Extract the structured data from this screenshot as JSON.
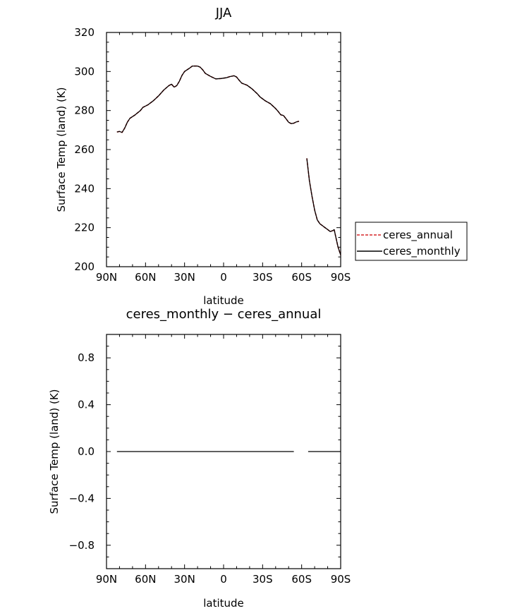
{
  "chart_data": [
    {
      "type": "line",
      "title": "JJA",
      "xlabel": "latitude",
      "ylabel": "Surface Temp (land) (K)",
      "xlim": [
        90,
        -90
      ],
      "ylim": [
        200,
        320
      ],
      "x_ticks": [
        {
          "value": 90,
          "label": "90N"
        },
        {
          "value": 60,
          "label": "60N"
        },
        {
          "value": 30,
          "label": "30N"
        },
        {
          "value": 0,
          "label": "0"
        },
        {
          "value": -30,
          "label": "30S"
        },
        {
          "value": -60,
          "label": "60S"
        },
        {
          "value": -90,
          "label": "90S"
        }
      ],
      "y_ticks": [
        {
          "value": 320,
          "label": "320"
        },
        {
          "value": 300,
          "label": "300"
        },
        {
          "value": 280,
          "label": "280"
        },
        {
          "value": 260,
          "label": "260"
        },
        {
          "value": 240,
          "label": "240"
        },
        {
          "value": 220,
          "label": "220"
        },
        {
          "value": 200,
          "label": "200"
        }
      ],
      "legend_position": "right",
      "series": [
        {
          "name": "ceres_annual",
          "color": "#d62728",
          "dash": "dashed",
          "segments": [
            [
              [
                82,
                269
              ],
              [
                80,
                269.3
              ],
              [
                78,
                268.8
              ],
              [
                76,
                271
              ],
              [
                74,
                274
              ],
              [
                72,
                276
              ],
              [
                68,
                277.8
              ],
              [
                64,
                280
              ],
              [
                62,
                281.6
              ],
              [
                58,
                283
              ],
              [
                54,
                285
              ],
              [
                50,
                287.5
              ],
              [
                46,
                290.5
              ],
              [
                42,
                292.8
              ],
              [
                40,
                293.5
              ],
              [
                38,
                292
              ],
              [
                36,
                292.8
              ],
              [
                34,
                295
              ],
              [
                32,
                298
              ],
              [
                30,
                300
              ],
              [
                26,
                301.8
              ],
              [
                24,
                302.8
              ],
              [
                20,
                302.8
              ],
              [
                18,
                302.2
              ],
              [
                16,
                300.8
              ],
              [
                14,
                299
              ],
              [
                10,
                297.5
              ],
              [
                6,
                296.2
              ],
              [
                2,
                296.4
              ],
              [
                -2,
                296.8
              ],
              [
                -5,
                297.4
              ],
              [
                -8,
                297.8
              ],
              [
                -10,
                297.2
              ],
              [
                -12,
                295.5
              ],
              [
                -14,
                294
              ],
              [
                -18,
                293
              ],
              [
                -22,
                291
              ],
              [
                -26,
                288.5
              ],
              [
                -28,
                287
              ],
              [
                -32,
                285
              ],
              [
                -36,
                283.5
              ],
              [
                -40,
                281
              ],
              [
                -42,
                279.5
              ],
              [
                -44,
                277.8
              ],
              [
                -46,
                277.5
              ],
              [
                -48,
                275.8
              ],
              [
                -50,
                274
              ],
              [
                -52,
                273.3
              ],
              [
                -54,
                273.5
              ],
              [
                -56,
                274.2
              ],
              [
                -58,
                274.5
              ]
            ],
            [
              [
                -64,
                255.5
              ],
              [
                -66,
                244
              ],
              [
                -68,
                236
              ],
              [
                -70,
                229
              ],
              [
                -72,
                224
              ],
              [
                -74,
                222
              ],
              [
                -76,
                221
              ],
              [
                -78,
                220
              ],
              [
                -80,
                219
              ],
              [
                -82,
                218
              ],
              [
                -84,
                218.5
              ],
              [
                -85,
                219
              ],
              [
                -86,
                216
              ],
              [
                -88,
                210
              ],
              [
                -90,
                206
              ]
            ]
          ]
        },
        {
          "name": "ceres_monthly",
          "color": "#000000",
          "dash": "solid",
          "segments": [
            [
              [
                82,
                269
              ],
              [
                80,
                269.3
              ],
              [
                78,
                268.8
              ],
              [
                76,
                271
              ],
              [
                74,
                274
              ],
              [
                72,
                276
              ],
              [
                68,
                277.8
              ],
              [
                64,
                280
              ],
              [
                62,
                281.6
              ],
              [
                58,
                283
              ],
              [
                54,
                285
              ],
              [
                50,
                287.5
              ],
              [
                46,
                290.5
              ],
              [
                42,
                292.8
              ],
              [
                40,
                293.5
              ],
              [
                38,
                292
              ],
              [
                36,
                292.8
              ],
              [
                34,
                295
              ],
              [
                32,
                298
              ],
              [
                30,
                300
              ],
              [
                26,
                301.8
              ],
              [
                24,
                302.8
              ],
              [
                20,
                302.8
              ],
              [
                18,
                302.2
              ],
              [
                16,
                300.8
              ],
              [
                14,
                299
              ],
              [
                10,
                297.5
              ],
              [
                6,
                296.2
              ],
              [
                2,
                296.4
              ],
              [
                -2,
                296.8
              ],
              [
                -5,
                297.4
              ],
              [
                -8,
                297.8
              ],
              [
                -10,
                297.2
              ],
              [
                -12,
                295.5
              ],
              [
                -14,
                294
              ],
              [
                -18,
                293
              ],
              [
                -22,
                291
              ],
              [
                -26,
                288.5
              ],
              [
                -28,
                287
              ],
              [
                -32,
                285
              ],
              [
                -36,
                283.5
              ],
              [
                -40,
                281
              ],
              [
                -42,
                279.5
              ],
              [
                -44,
                277.8
              ],
              [
                -46,
                277.5
              ],
              [
                -48,
                275.8
              ],
              [
                -50,
                274
              ],
              [
                -52,
                273.3
              ],
              [
                -54,
                273.5
              ],
              [
                -56,
                274.2
              ],
              [
                -58,
                274.5
              ]
            ],
            [
              [
                -64,
                255.5
              ],
              [
                -66,
                244
              ],
              [
                -68,
                236
              ],
              [
                -70,
                229
              ],
              [
                -72,
                224
              ],
              [
                -74,
                222
              ],
              [
                -76,
                221
              ],
              [
                -78,
                220
              ],
              [
                -80,
                219
              ],
              [
                -82,
                218
              ],
              [
                -84,
                218.5
              ],
              [
                -85,
                219
              ],
              [
                -86,
                216
              ],
              [
                -88,
                210
              ],
              [
                -90,
                206
              ]
            ]
          ]
        }
      ]
    },
    {
      "type": "line",
      "title": "ceres_monthly − ceres_annual",
      "xlabel": "latitude",
      "ylabel": "Surface Temp (land) (K)",
      "xlim": [
        90,
        -90
      ],
      "ylim": [
        -1,
        1
      ],
      "x_ticks": [
        {
          "value": 90,
          "label": "90N"
        },
        {
          "value": 60,
          "label": "60N"
        },
        {
          "value": 30,
          "label": "30N"
        },
        {
          "value": 0,
          "label": "0"
        },
        {
          "value": -30,
          "label": "30S"
        },
        {
          "value": -60,
          "label": "60S"
        },
        {
          "value": -90,
          "label": "90S"
        }
      ],
      "y_ticks": [
        {
          "value": 0.8,
          "label": "0.8"
        },
        {
          "value": 0.4,
          "label": "0.4"
        },
        {
          "value": 0,
          "label": "0.0"
        },
        {
          "value": -0.4,
          "label": "−0.4"
        },
        {
          "value": -0.8,
          "label": "−0.8"
        }
      ],
      "series": [
        {
          "color": "#000000",
          "dash": "solid",
          "segments": [
            [
              [
                82,
                0
              ],
              [
                -54,
                0
              ]
            ],
            [
              [
                -65,
                0
              ],
              [
                -90,
                0
              ]
            ]
          ]
        }
      ]
    }
  ]
}
